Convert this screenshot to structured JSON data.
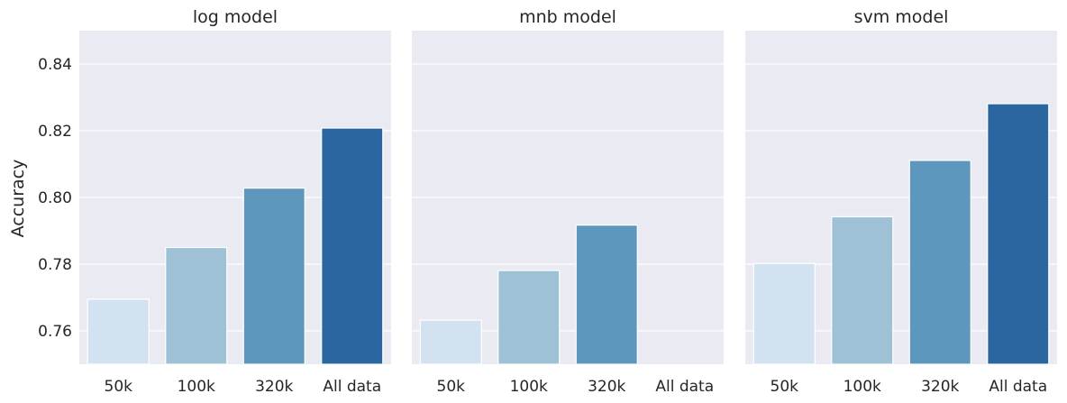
{
  "chart_data": {
    "type": "bar",
    "ylabel": "Accuracy",
    "ylim": [
      0.75,
      0.85
    ],
    "yticks": [
      0.76,
      0.78,
      0.8,
      0.82,
      0.84
    ],
    "ytick_labels": [
      "0.76",
      "0.78",
      "0.80",
      "0.82",
      "0.84"
    ],
    "grid": true,
    "categories": [
      "50k",
      "100k",
      "320k",
      "All data"
    ],
    "colors": [
      "#d3e2f0",
      "#9ec1d6",
      "#5d97bd",
      "#2b66a0"
    ],
    "panels": [
      {
        "title": "log model",
        "values": [
          0.7695,
          0.785,
          0.8028,
          0.8208
        ]
      },
      {
        "title": "mnb model",
        "values": [
          0.7632,
          0.7781,
          0.7917,
          null
        ]
      },
      {
        "title": "svm model",
        "values": [
          0.7802,
          0.7942,
          0.8111,
          0.8281
        ]
      }
    ]
  }
}
